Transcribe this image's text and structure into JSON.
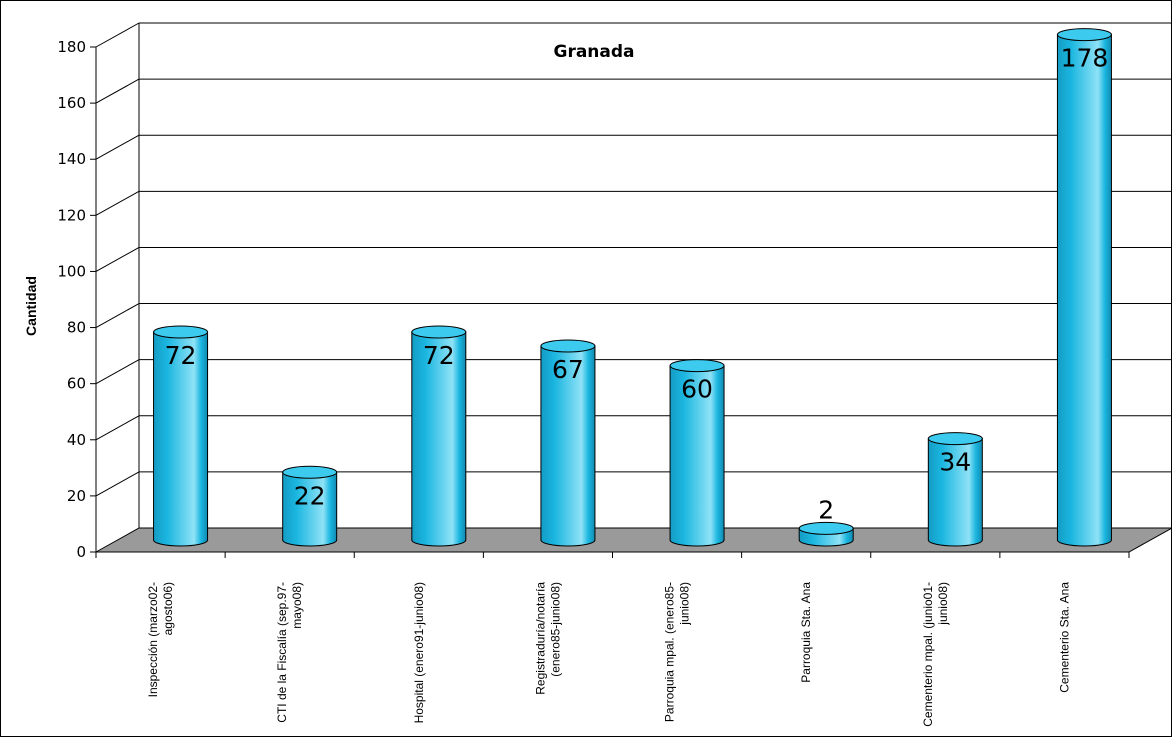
{
  "chart_data": {
    "type": "bar",
    "title": "Granada",
    "xlabel": "",
    "ylabel": "Cantidad",
    "ylim": [
      0,
      180
    ],
    "yticks": [
      0,
      20,
      40,
      60,
      80,
      100,
      120,
      140,
      160,
      180
    ],
    "categories": [
      [
        "Inspección (marzo02-",
        "agosto06)"
      ],
      [
        "CTI de la Fiscalía (sep.97-",
        "mayo08)"
      ],
      [
        "Hospital (enero91-junio08)"
      ],
      [
        "Registraduría/notaría",
        "(enero85-junio08)"
      ],
      [
        "Parroquia mpal. (enero85-",
        "junio08)"
      ],
      [
        "Parroquia Sta. Ana"
      ],
      [
        "Cementerio mpal. (junio01-",
        "junio08)"
      ],
      [
        "Cementerio Sta. Ana"
      ]
    ],
    "values": [
      72,
      22,
      72,
      67,
      60,
      2,
      34,
      178
    ],
    "data_labels": [
      "72",
      "22",
      "72",
      "67",
      "60",
      "2",
      "34",
      "178"
    ],
    "grid": true,
    "bar_shape": "cylinder",
    "colors": {
      "bar": "#1ab6e0",
      "bar_top": "#3ccbee",
      "bar_highlight": "#8fe2f6",
      "floor": "#9a9a9a",
      "axis": "#000000"
    }
  }
}
